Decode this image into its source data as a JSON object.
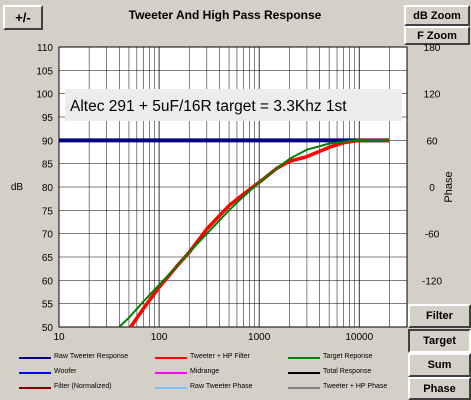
{
  "window": {
    "title": "Tweeter  And High Pass Response",
    "plus_minus_label": "+/-",
    "db_zoom_label": "dB Zoom",
    "f_zoom_label": "F Zoom"
  },
  "side_buttons": [
    {
      "label": "Filter",
      "pressed": false
    },
    {
      "label": "Target",
      "pressed": true
    },
    {
      "label": "Sum",
      "pressed": false
    },
    {
      "label": "Phase",
      "pressed": false
    }
  ],
  "annotation": "Altec 291 + 5uF/16R  target = 3.3Khz 1st",
  "chart_data": {
    "type": "line",
    "xscale": "log",
    "xlim": [
      10,
      30000
    ],
    "ylim": [
      50,
      110
    ],
    "y2lim": [
      -180,
      180
    ],
    "xlabel": "",
    "ylabel": "dB",
    "y2label": "Phase",
    "x_ticks": [
      10,
      100,
      1000,
      10000
    ],
    "x_tick_labels": [
      "10",
      "100",
      "1000",
      "10000"
    ],
    "y_ticks": [
      50,
      55,
      60,
      65,
      70,
      75,
      80,
      85,
      90,
      95,
      100,
      105,
      110
    ],
    "y2_ticks": [
      -120,
      -60,
      0,
      60,
      120,
      180
    ],
    "grid": true,
    "legend_position": "bottom",
    "legend": [
      {
        "name": "Raw Tweeter Response",
        "color": "#000080"
      },
      {
        "name": "Tweeter + HP Filter",
        "color": "#ff0000"
      },
      {
        "name": "Target Reponse",
        "color": "#008000"
      },
      {
        "name": "Woofer",
        "color": "#0000ff"
      },
      {
        "name": "Midrange",
        "color": "#ff00ff"
      },
      {
        "name": "Total Response",
        "color": "#000000"
      },
      {
        "name": "Filter (Normalized)",
        "color": "#800000"
      },
      {
        "name": "Raw Tweeter Phase",
        "color": "#80c0ff"
      },
      {
        "name": "Tweeter + HP Phase",
        "color": "#808080"
      }
    ],
    "series": [
      {
        "name": "Raw Tweeter Response",
        "color": "#000080",
        "x": [
          10,
          20000
        ],
        "y": [
          90,
          90
        ]
      },
      {
        "name": "Tweeter + HP Filter",
        "color": "#ff0000",
        "x": [
          52,
          70,
          100,
          150,
          200,
          300,
          500,
          700,
          1000,
          1500,
          2000,
          3000,
          5000,
          7000,
          10000,
          15000,
          20000
        ],
        "y": [
          50,
          54,
          58.5,
          63,
          66,
          71,
          76,
          78.5,
          81,
          84,
          85.5,
          86.5,
          88.5,
          89.5,
          90,
          90,
          90
        ]
      },
      {
        "name": "Target Reponse",
        "color": "#008000",
        "x": [
          40,
          50,
          70,
          100,
          150,
          200,
          300,
          500,
          700,
          1000,
          1500,
          2000,
          3000,
          5000,
          7000,
          10000,
          15000,
          20000
        ],
        "y": [
          50,
          52,
          55.5,
          59,
          63,
          66,
          70,
          75,
          78,
          81,
          84,
          86,
          88,
          89.3,
          89.7,
          90,
          90,
          90
        ]
      }
    ]
  }
}
